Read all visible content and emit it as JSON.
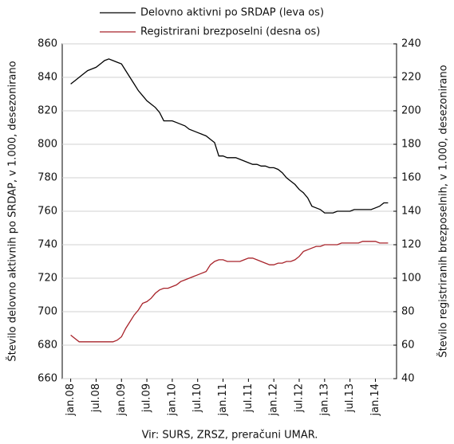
{
  "chart_data": {
    "type": "line",
    "y_label": "Število delovno aktivnih po SRDAP, v 1.000, desezonirano",
    "y2_label": "Število registriranih brezposelnih, v 1.000, desezonirano",
    "source": "Vir: SURS, ZRSZ, preračuni UMAR.",
    "categories": [
      "jan.08",
      null,
      null,
      null,
      null,
      null,
      "jul.08",
      null,
      null,
      null,
      null,
      null,
      "jan.09",
      null,
      null,
      null,
      null,
      null,
      "jul.09",
      null,
      null,
      null,
      null,
      null,
      "jan.10",
      null,
      null,
      null,
      null,
      null,
      "jul.10",
      null,
      null,
      null,
      null,
      null,
      "jan.11",
      null,
      null,
      null,
      null,
      null,
      "jul.11",
      null,
      null,
      null,
      null,
      null,
      "jan.12",
      null,
      null,
      null,
      null,
      null,
      "jul.12",
      null,
      null,
      null,
      null,
      null,
      "jan.13",
      null,
      null,
      null,
      null,
      null,
      "jul.13",
      null,
      null,
      null,
      null,
      null,
      "jan.14",
      null,
      null,
      null
    ],
    "series": [
      {
        "name": "Delovno aktivni po SRDAP (leva os)",
        "color": "#000000",
        "axis": "y",
        "values": [
          836,
          838,
          840,
          842,
          844,
          845,
          846,
          848,
          850,
          851,
          850,
          849,
          848,
          844,
          840,
          836,
          832,
          829,
          826,
          824,
          822,
          819,
          814,
          814,
          814,
          813,
          812,
          811,
          809,
          808,
          807,
          806,
          805,
          803,
          801,
          793,
          793,
          792,
          792,
          792,
          791,
          790,
          789,
          788,
          788,
          787,
          787,
          786,
          786,
          785,
          783,
          780,
          778,
          776,
          773,
          771,
          768,
          763,
          762,
          761,
          759,
          759,
          759,
          760,
          760,
          760,
          760,
          761,
          761,
          761,
          761,
          761,
          762,
          763,
          765,
          765
        ]
      },
      {
        "name": "Registrirani brezposelni (desna os)",
        "color": "#a8232a",
        "axis": "y2",
        "values": [
          66,
          64,
          62,
          62,
          62,
          62,
          62,
          62,
          62,
          62,
          62,
          63,
          65,
          70,
          74,
          78,
          81,
          85,
          86,
          88,
          91,
          93,
          94,
          94,
          95,
          96,
          98,
          99,
          100,
          101,
          102,
          103,
          104,
          108,
          110,
          111,
          111,
          110,
          110,
          110,
          110,
          111,
          112,
          112,
          111,
          110,
          109,
          108,
          108,
          109,
          109,
          110,
          110,
          111,
          113,
          116,
          117,
          118,
          119,
          119,
          120,
          120,
          120,
          120,
          121,
          121,
          121,
          121,
          121,
          122,
          122,
          122,
          122,
          121,
          121,
          121
        ]
      }
    ],
    "ylim": [
      660,
      860
    ],
    "yticks": [
      660,
      680,
      700,
      720,
      740,
      760,
      780,
      800,
      820,
      840,
      860
    ],
    "y2lim": [
      40,
      240
    ],
    "y2ticks": [
      40,
      60,
      80,
      100,
      120,
      140,
      160,
      180,
      200,
      220,
      240
    ],
    "grid": true
  }
}
